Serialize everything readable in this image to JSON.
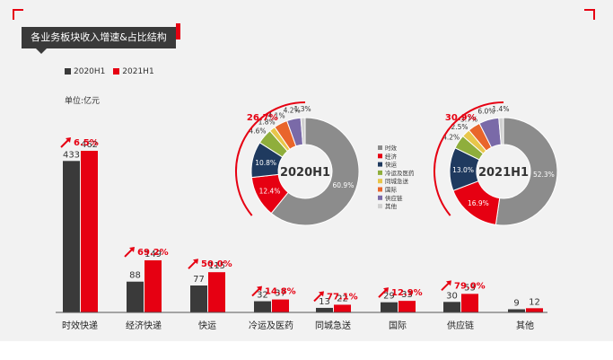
{
  "title": "各业务板块收入增速&占比结构",
  "unit": "单位:亿元",
  "colors": {
    "y2020": "#3a3a3a",
    "y2021": "#e60012",
    "accent": "#e60012"
  },
  "chart_data": [
    {
      "type": "bar",
      "categories": [
        "时效快递",
        "经济快递",
        "快运",
        "冷运及医药",
        "同城急送",
        "国际",
        "供应链",
        "其他"
      ],
      "series": [
        {
          "name": "2020H1",
          "values": [
            433,
            88,
            77,
            32,
            13,
            29,
            30,
            9
          ]
        },
        {
          "name": "2021H1",
          "values": [
            462,
            149,
            115,
            37,
            22,
            33,
            53,
            12
          ]
        }
      ],
      "growth": [
        "6.5%",
        "69.2%",
        "50.0%",
        "14.8%",
        "77.1%",
        "12.9%",
        "79.0%",
        ""
      ],
      "legend": [
        "2020H1",
        "2021H1"
      ]
    },
    {
      "type": "pie",
      "center_label": "2020H1",
      "labels": [
        "时效",
        "经济",
        "快运",
        "冷运及医药",
        "同城急送",
        "国际",
        "供应链",
        "其他"
      ],
      "values": [
        60.9,
        12.4,
        10.8,
        4.6,
        1.8,
        4.1,
        4.2,
        1.3
      ],
      "value_labels": [
        "60.9%",
        "12.4%",
        "10.8%",
        "4.6%",
        "1.8%",
        "4.1%",
        "4.2%",
        "1.3%"
      ],
      "arc_label": "26.7%",
      "legend": [
        "时效",
        "经济",
        "快运",
        "冷运及医药",
        "同城急送",
        "国际",
        "供应链",
        "其他"
      ]
    },
    {
      "type": "pie",
      "center_label": "2021H1",
      "labels": [
        "时效",
        "经济",
        "快运",
        "冷运及医药",
        "同城急送",
        "国际",
        "供应链",
        "其他"
      ],
      "values": [
        52.3,
        16.9,
        13.0,
        4.2,
        2.5,
        3.7,
        6.0,
        1.4
      ],
      "value_labels": [
        "52.3%",
        "16.9%",
        "13.0%",
        "4.2%",
        "2.5%",
        "3.7%",
        "6.0%",
        "1.4%"
      ],
      "arc_label": "30.9%"
    }
  ],
  "slice_colors": [
    "#8c8c8c",
    "#e60012",
    "#1f3a5f",
    "#8fae3c",
    "#e8c64a",
    "#e9652b",
    "#7a6aa8",
    "#d0d0d0"
  ]
}
